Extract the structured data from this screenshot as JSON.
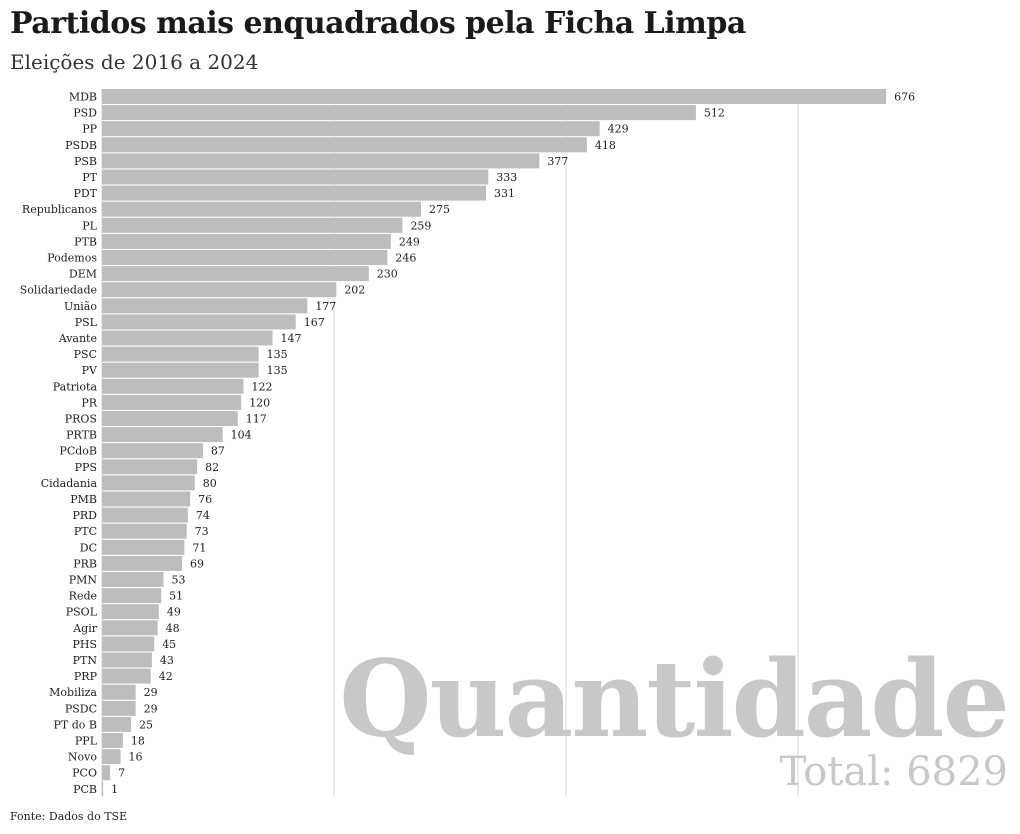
{
  "header": {
    "title": "Partidos mais enquadrados pela Ficha Limpa",
    "subtitle": "Eleições de 2016 a 2024"
  },
  "footer": {
    "source": "Fonte: Dados do TSE"
  },
  "watermark": {
    "label": "Quantidade",
    "total": "Total: 6829"
  },
  "colors": {
    "bar": "#bdbdbd",
    "grid": "#d9d9d9",
    "watermark": "#c8c8c8"
  },
  "chart_data": {
    "type": "bar",
    "orientation": "horizontal",
    "title": "Partidos mais enquadrados pela Ficha Limpa",
    "subtitle": "Eleições de 2016 a 2024",
    "xlim": [
      0,
      700
    ],
    "grid": true,
    "categories": [
      "MDB",
      "PSD",
      "PP",
      "PSDB",
      "PSB",
      "PT",
      "PDT",
      "Republicanos",
      "PL",
      "PTB",
      "Podemos",
      "DEM",
      "Solidariedade",
      "União",
      "PSL",
      "Avante",
      "PSC",
      "PV",
      "Patriota",
      "PR",
      "PROS",
      "PRTB",
      "PCdoB",
      "PPS",
      "Cidadania",
      "PMB",
      "PRD",
      "PTC",
      "DC",
      "PRB",
      "PMN",
      "Rede",
      "PSOL",
      "Agir",
      "PHS",
      "PTN",
      "PRP",
      "Mobiliza",
      "PSDC",
      "PT do B",
      "PPL",
      "Novo",
      "PCO",
      "PCB"
    ],
    "values": [
      676,
      512,
      429,
      418,
      377,
      333,
      331,
      275,
      259,
      249,
      246,
      230,
      202,
      177,
      167,
      147,
      135,
      135,
      122,
      120,
      117,
      104,
      87,
      82,
      80,
      76,
      74,
      73,
      71,
      69,
      53,
      51,
      49,
      48,
      45,
      43,
      42,
      29,
      29,
      25,
      18,
      16,
      7,
      1
    ]
  }
}
